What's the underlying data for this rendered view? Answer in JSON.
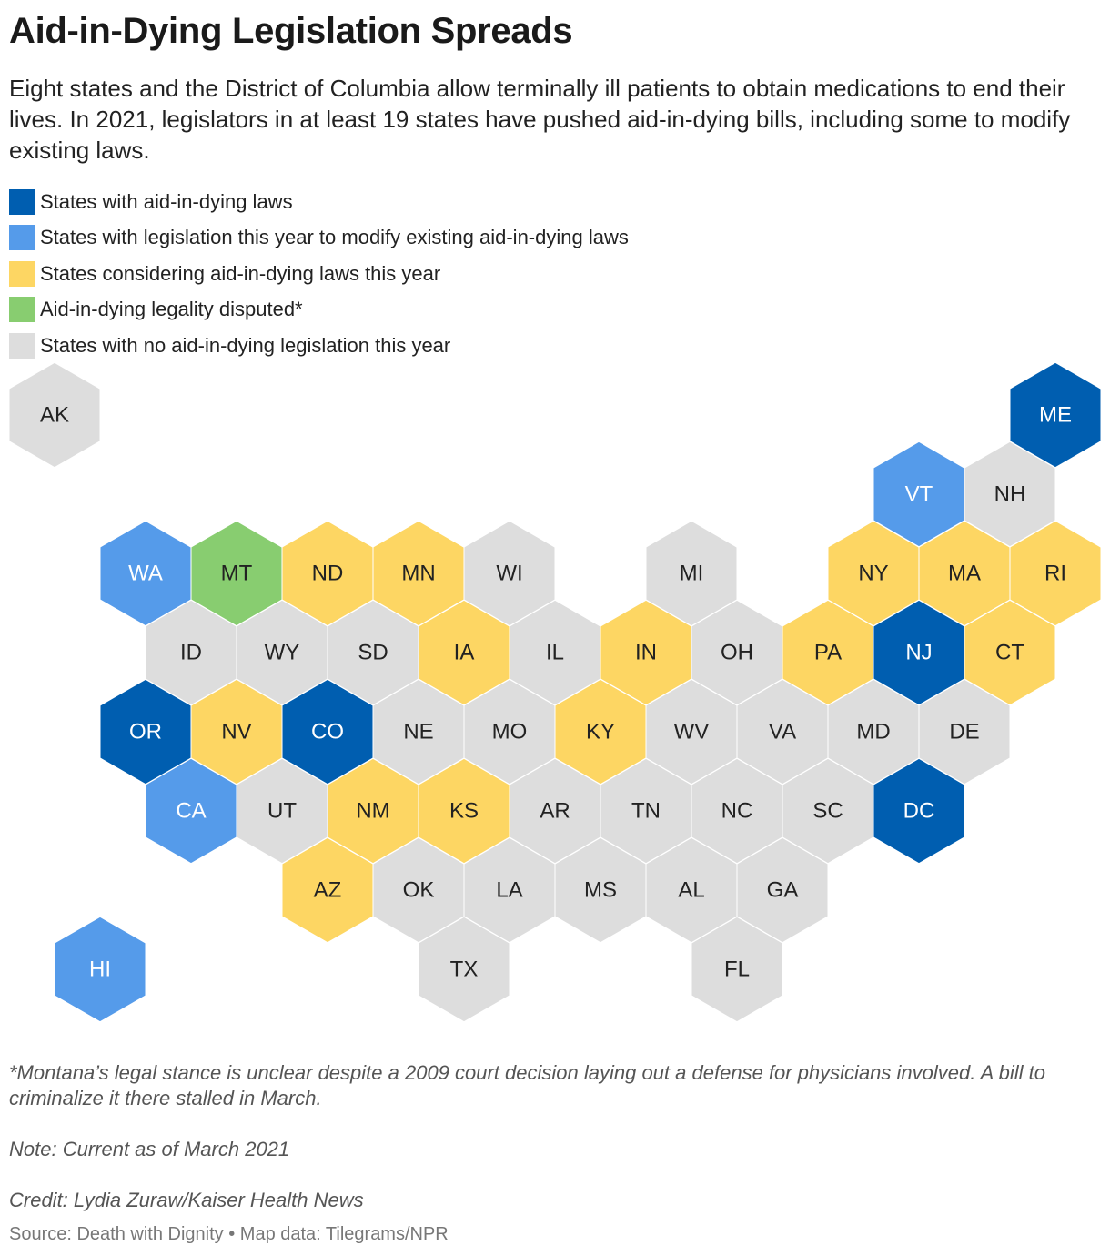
{
  "header": {
    "title": "Aid-in-Dying Legislation Spreads",
    "description": "Eight states and the District of Columbia allow terminally ill patients to obtain medications to end their lives. In 2021, legislators in at least 19 states have pushed aid-in-dying bills, including some to modify existing laws."
  },
  "legend": [
    {
      "key": "law",
      "label": "States with aid-in-dying laws",
      "color": "#005eb0"
    },
    {
      "key": "modify",
      "label": "States with legislation this year to modify existing aid-in-dying laws",
      "color": "#559bea"
    },
    {
      "key": "considering",
      "label": "States considering aid-in-dying laws this year",
      "color": "#fdd663"
    },
    {
      "key": "disputed",
      "label": "Aid-in-dying legality disputed*",
      "color": "#88cd70"
    },
    {
      "key": "none",
      "label": "States with no aid-in-dying legislation this year",
      "color": "#dddddd"
    }
  ],
  "states": [
    {
      "abbr": "AK",
      "status": "none",
      "col": 0,
      "row": 0
    },
    {
      "abbr": "ME",
      "status": "law",
      "col": 11,
      "row": 0
    },
    {
      "abbr": "VT",
      "status": "modify",
      "col": 9.5,
      "row": 1
    },
    {
      "abbr": "NH",
      "status": "none",
      "col": 10.5,
      "row": 1
    },
    {
      "abbr": "WA",
      "status": "modify",
      "col": 1,
      "row": 2
    },
    {
      "abbr": "MT",
      "status": "disputed",
      "col": 2,
      "row": 2
    },
    {
      "abbr": "ND",
      "status": "considering",
      "col": 3,
      "row": 2
    },
    {
      "abbr": "MN",
      "status": "considering",
      "col": 4,
      "row": 2
    },
    {
      "abbr": "WI",
      "status": "none",
      "col": 5,
      "row": 2
    },
    {
      "abbr": "MI",
      "status": "none",
      "col": 7,
      "row": 2
    },
    {
      "abbr": "NY",
      "status": "considering",
      "col": 9,
      "row": 2
    },
    {
      "abbr": "MA",
      "status": "considering",
      "col": 10,
      "row": 2
    },
    {
      "abbr": "RI",
      "status": "considering",
      "col": 11,
      "row": 2
    },
    {
      "abbr": "ID",
      "status": "none",
      "col": 1.5,
      "row": 3
    },
    {
      "abbr": "WY",
      "status": "none",
      "col": 2.5,
      "row": 3
    },
    {
      "abbr": "SD",
      "status": "none",
      "col": 3.5,
      "row": 3
    },
    {
      "abbr": "IA",
      "status": "considering",
      "col": 4.5,
      "row": 3
    },
    {
      "abbr": "IL",
      "status": "none",
      "col": 5.5,
      "row": 3
    },
    {
      "abbr": "IN",
      "status": "considering",
      "col": 6.5,
      "row": 3
    },
    {
      "abbr": "OH",
      "status": "none",
      "col": 7.5,
      "row": 3
    },
    {
      "abbr": "PA",
      "status": "considering",
      "col": 8.5,
      "row": 3
    },
    {
      "abbr": "NJ",
      "status": "law",
      "col": 9.5,
      "row": 3
    },
    {
      "abbr": "CT",
      "status": "considering",
      "col": 10.5,
      "row": 3
    },
    {
      "abbr": "OR",
      "status": "law",
      "col": 1,
      "row": 4
    },
    {
      "abbr": "NV",
      "status": "considering",
      "col": 2,
      "row": 4
    },
    {
      "abbr": "CO",
      "status": "law",
      "col": 3,
      "row": 4
    },
    {
      "abbr": "NE",
      "status": "none",
      "col": 4,
      "row": 4
    },
    {
      "abbr": "MO",
      "status": "none",
      "col": 5,
      "row": 4
    },
    {
      "abbr": "KY",
      "status": "considering",
      "col": 6,
      "row": 4
    },
    {
      "abbr": "WV",
      "status": "none",
      "col": 7,
      "row": 4
    },
    {
      "abbr": "VA",
      "status": "none",
      "col": 8,
      "row": 4
    },
    {
      "abbr": "MD",
      "status": "none",
      "col": 9,
      "row": 4
    },
    {
      "abbr": "DE",
      "status": "none",
      "col": 10,
      "row": 4
    },
    {
      "abbr": "CA",
      "status": "modify",
      "col": 1.5,
      "row": 5
    },
    {
      "abbr": "UT",
      "status": "none",
      "col": 2.5,
      "row": 5
    },
    {
      "abbr": "NM",
      "status": "considering",
      "col": 3.5,
      "row": 5
    },
    {
      "abbr": "KS",
      "status": "considering",
      "col": 4.5,
      "row": 5
    },
    {
      "abbr": "AR",
      "status": "none",
      "col": 5.5,
      "row": 5
    },
    {
      "abbr": "TN",
      "status": "none",
      "col": 6.5,
      "row": 5
    },
    {
      "abbr": "NC",
      "status": "none",
      "col": 7.5,
      "row": 5
    },
    {
      "abbr": "SC",
      "status": "none",
      "col": 8.5,
      "row": 5
    },
    {
      "abbr": "DC",
      "status": "law",
      "col": 9.5,
      "row": 5
    },
    {
      "abbr": "AZ",
      "status": "considering",
      "col": 3,
      "row": 6
    },
    {
      "abbr": "OK",
      "status": "none",
      "col": 4,
      "row": 6
    },
    {
      "abbr": "LA",
      "status": "none",
      "col": 5,
      "row": 6
    },
    {
      "abbr": "MS",
      "status": "none",
      "col": 6,
      "row": 6
    },
    {
      "abbr": "AL",
      "status": "none",
      "col": 7,
      "row": 6
    },
    {
      "abbr": "GA",
      "status": "none",
      "col": 8,
      "row": 6
    },
    {
      "abbr": "HI",
      "status": "modify",
      "col": 0.5,
      "row": 7
    },
    {
      "abbr": "TX",
      "status": "none",
      "col": 4.5,
      "row": 7
    },
    {
      "abbr": "FL",
      "status": "none",
      "col": 7.5,
      "row": 7
    }
  ],
  "footnotes": {
    "montana": "*Montana’s legal stance is unclear despite a 2009 court decision laying out a defense for physicians involved. A bill to criminalize it there stalled in March.",
    "note": "Note: Current as of March 2021",
    "credit": "Credit: Lydia Zuraw/Kaiser Health News",
    "source": "Source: Death with Dignity • Map data: Tilegrams/NPR"
  }
}
